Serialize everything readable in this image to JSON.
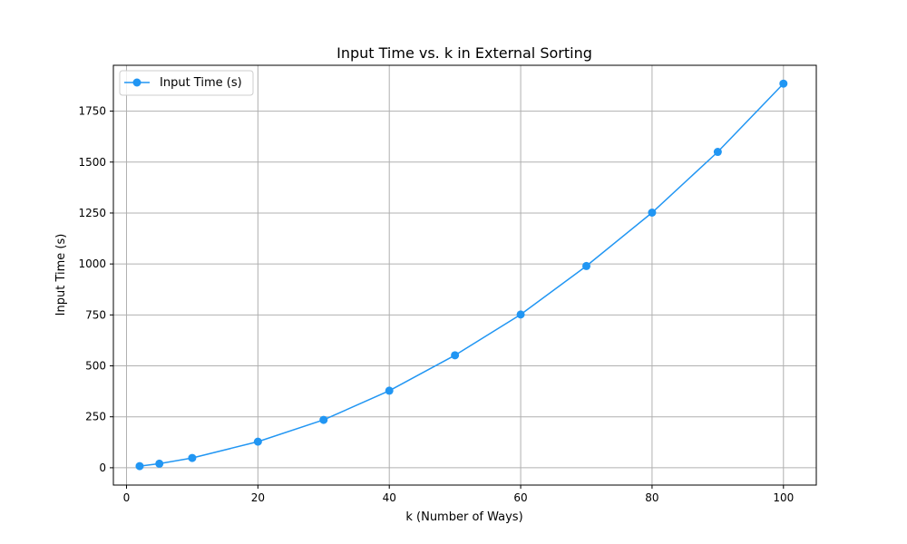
{
  "chart_data": {
    "type": "line",
    "title": "Input Time vs. k in External Sorting",
    "xlabel": "k (Number of Ways)",
    "ylabel": "Input Time (s)",
    "xlim": [
      -2,
      105
    ],
    "ylim": [
      -85,
      1975
    ],
    "xticks": [
      0,
      20,
      40,
      60,
      80,
      100
    ],
    "yticks": [
      0,
      250,
      500,
      750,
      1000,
      1250,
      1500,
      1750
    ],
    "grid": true,
    "legend_position": "top-left",
    "series": [
      {
        "name": "Input Time (s)",
        "color": "#2196F3",
        "marker": "circle",
        "x": [
          2,
          5,
          10,
          20,
          30,
          40,
          50,
          60,
          70,
          80,
          90,
          100
        ],
        "y": [
          8,
          20,
          48,
          128,
          235,
          378,
          552,
          752,
          990,
          1252,
          1550,
          1885
        ]
      }
    ]
  }
}
